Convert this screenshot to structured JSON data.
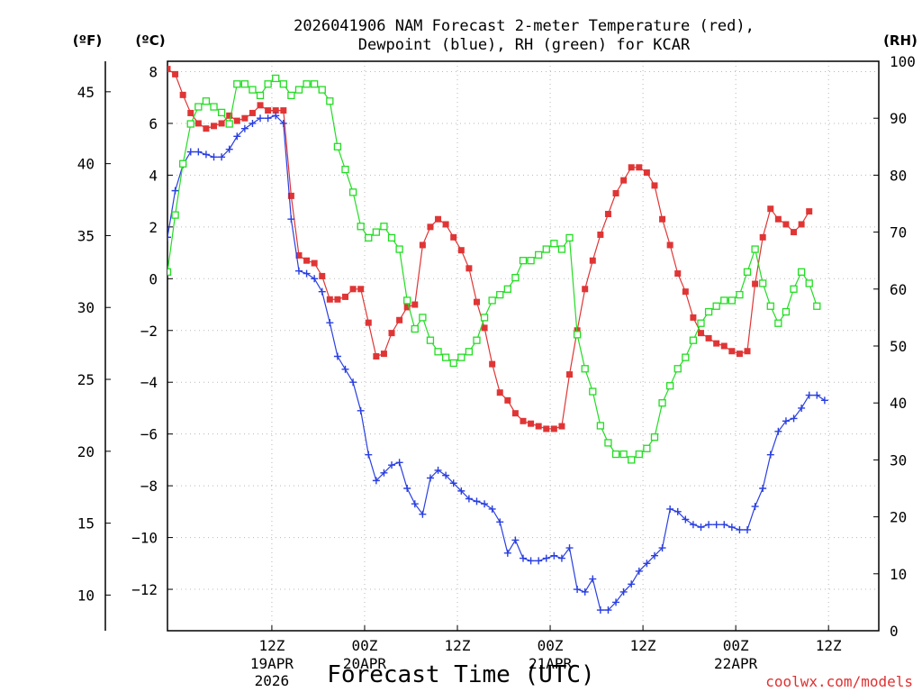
{
  "chart_data": {
    "type": "line",
    "title_line1": "2026041906 NAM Forecast 2-meter Temperature (red),",
    "title_line2": "Dewpoint (blue), RH (green) for KCAR",
    "xlabel": "Forecast Time (UTC)",
    "credit": "coolwx.com/models",
    "units": {
      "fahrenheit": "(ºF)",
      "celsius": "(ºC)",
      "rh": "(RH)"
    },
    "x_range_hours": [
      -7.5,
      84.5
    ],
    "celsius_range": [
      -13.6,
      8.4
    ],
    "rh_range": [
      0,
      100
    ],
    "celsius_ticks": [
      8,
      6,
      4,
      2,
      0,
      -2,
      -4,
      -6,
      -8,
      -10,
      -12
    ],
    "fahrenheit_ticks": [
      45,
      40,
      35,
      30,
      25,
      20,
      15,
      10
    ],
    "rh_ticks": [
      100,
      90,
      80,
      70,
      60,
      50,
      40,
      30,
      20,
      10,
      0
    ],
    "x_ticks": [
      {
        "hour": 6,
        "label": "12Z",
        "date": "19APR",
        "year": "2026"
      },
      {
        "hour": 18,
        "label": "00Z",
        "date": "20APR",
        "year": ""
      },
      {
        "hour": 30,
        "label": "12Z",
        "date": "",
        "year": ""
      },
      {
        "hour": 42,
        "label": "00Z",
        "date": "21APR",
        "year": ""
      },
      {
        "hour": 54,
        "label": "12Z",
        "date": "",
        "year": ""
      },
      {
        "hour": 66,
        "label": "00Z",
        "date": "22APR",
        "year": ""
      },
      {
        "hour": 78,
        "label": "12Z",
        "date": "",
        "year": ""
      }
    ],
    "series": [
      {
        "name": "Temperature",
        "unit": "C",
        "color": "#e03535",
        "marker": "filled-square",
        "points": [
          [
            -7.5,
            8.1
          ],
          [
            -6.5,
            7.9
          ],
          [
            -5.5,
            7.1
          ],
          [
            -4.5,
            6.4
          ],
          [
            -3.5,
            6.0
          ],
          [
            -2.5,
            5.8
          ],
          [
            -1.5,
            5.9
          ],
          [
            -0.5,
            6.0
          ],
          [
            0.5,
            6.3
          ],
          [
            1.5,
            6.1
          ],
          [
            2.5,
            6.2
          ],
          [
            3.5,
            6.4
          ],
          [
            4.5,
            6.7
          ],
          [
            5.5,
            6.5
          ],
          [
            6.5,
            6.5
          ],
          [
            7.5,
            6.5
          ],
          [
            8.5,
            3.2
          ],
          [
            9.5,
            0.9
          ],
          [
            10.5,
            0.7
          ],
          [
            11.5,
            0.6
          ],
          [
            12.5,
            0.1
          ],
          [
            13.5,
            -0.8
          ],
          [
            14.5,
            -0.8
          ],
          [
            15.5,
            -0.7
          ],
          [
            16.5,
            -0.4
          ],
          [
            17.5,
            -0.4
          ],
          [
            18.5,
            -1.7
          ],
          [
            19.5,
            -3.0
          ],
          [
            20.5,
            -2.9
          ],
          [
            21.5,
            -2.1
          ],
          [
            22.5,
            -1.6
          ],
          [
            23.5,
            -1.1
          ],
          [
            24.5,
            -1.0
          ],
          [
            25.5,
            1.3
          ],
          [
            26.5,
            2.0
          ],
          [
            27.5,
            2.3
          ],
          [
            28.5,
            2.1
          ],
          [
            29.5,
            1.6
          ],
          [
            30.5,
            1.1
          ],
          [
            31.5,
            0.4
          ],
          [
            32.5,
            -0.9
          ],
          [
            33.5,
            -1.9
          ],
          [
            34.5,
            -3.3
          ],
          [
            35.5,
            -4.4
          ],
          [
            36.5,
            -4.7
          ],
          [
            37.5,
            -5.2
          ],
          [
            38.5,
            -5.5
          ],
          [
            39.5,
            -5.6
          ],
          [
            40.5,
            -5.7
          ],
          [
            41.5,
            -5.8
          ],
          [
            42.5,
            -5.8
          ],
          [
            43.5,
            -5.7
          ],
          [
            44.5,
            -3.7
          ],
          [
            45.5,
            -2.0
          ],
          [
            46.5,
            -0.4
          ],
          [
            47.5,
            0.7
          ],
          [
            48.5,
            1.7
          ],
          [
            49.5,
            2.5
          ],
          [
            50.5,
            3.3
          ],
          [
            51.5,
            3.8
          ],
          [
            52.5,
            4.3
          ],
          [
            53.5,
            4.3
          ],
          [
            54.5,
            4.1
          ],
          [
            55.5,
            3.6
          ],
          [
            56.5,
            2.3
          ],
          [
            57.5,
            1.3
          ],
          [
            58.5,
            0.2
          ],
          [
            59.5,
            -0.5
          ],
          [
            60.5,
            -1.5
          ],
          [
            61.5,
            -2.1
          ],
          [
            62.5,
            -2.3
          ],
          [
            63.5,
            -2.5
          ],
          [
            64.5,
            -2.6
          ],
          [
            65.5,
            -2.8
          ],
          [
            66.5,
            -2.9
          ],
          [
            67.5,
            -2.8
          ],
          [
            68.5,
            -0.2
          ],
          [
            69.5,
            1.6
          ],
          [
            70.5,
            2.7
          ],
          [
            71.5,
            2.3
          ],
          [
            72.5,
            2.1
          ],
          [
            73.5,
            1.8
          ],
          [
            74.5,
            2.1
          ],
          [
            75.5,
            2.6
          ]
        ]
      },
      {
        "name": "Dewpoint",
        "unit": "C",
        "color": "#2a3fe0",
        "marker": "plus",
        "points": [
          [
            -7.5,
            1.6
          ],
          [
            -6.5,
            3.4
          ],
          [
            -5.5,
            4.4
          ],
          [
            -4.5,
            4.9
          ],
          [
            -3.5,
            4.9
          ],
          [
            -2.5,
            4.8
          ],
          [
            -1.5,
            4.7
          ],
          [
            -0.5,
            4.7
          ],
          [
            0.5,
            5.0
          ],
          [
            1.5,
            5.5
          ],
          [
            2.5,
            5.8
          ],
          [
            3.5,
            6.0
          ],
          [
            4.5,
            6.2
          ],
          [
            5.5,
            6.2
          ],
          [
            6.5,
            6.3
          ],
          [
            7.5,
            6.0
          ],
          [
            8.5,
            2.3
          ],
          [
            9.5,
            0.3
          ],
          [
            10.5,
            0.2
          ],
          [
            11.5,
            0.0
          ],
          [
            12.5,
            -0.5
          ],
          [
            13.5,
            -1.7
          ],
          [
            14.5,
            -3.0
          ],
          [
            15.5,
            -3.5
          ],
          [
            16.5,
            -4.0
          ],
          [
            17.5,
            -5.1
          ],
          [
            18.5,
            -6.8
          ],
          [
            19.5,
            -7.8
          ],
          [
            20.5,
            -7.5
          ],
          [
            21.5,
            -7.2
          ],
          [
            22.5,
            -7.1
          ],
          [
            23.5,
            -8.1
          ],
          [
            24.5,
            -8.7
          ],
          [
            25.5,
            -9.1
          ],
          [
            26.5,
            -7.7
          ],
          [
            27.5,
            -7.4
          ],
          [
            28.5,
            -7.6
          ],
          [
            29.5,
            -7.9
          ],
          [
            30.5,
            -8.2
          ],
          [
            31.5,
            -8.5
          ],
          [
            32.5,
            -8.6
          ],
          [
            33.5,
            -8.7
          ],
          [
            34.5,
            -8.9
          ],
          [
            35.5,
            -9.4
          ],
          [
            36.5,
            -10.6
          ],
          [
            37.5,
            -10.1
          ],
          [
            38.5,
            -10.8
          ],
          [
            39.5,
            -10.9
          ],
          [
            40.5,
            -10.9
          ],
          [
            41.5,
            -10.8
          ],
          [
            42.5,
            -10.7
          ],
          [
            43.5,
            -10.8
          ],
          [
            44.5,
            -10.4
          ],
          [
            45.5,
            -12.0
          ],
          [
            46.5,
            -12.1
          ],
          [
            47.5,
            -11.6
          ],
          [
            48.5,
            -12.8
          ],
          [
            49.5,
            -12.8
          ],
          [
            50.5,
            -12.5
          ],
          [
            51.5,
            -12.1
          ],
          [
            52.5,
            -11.8
          ],
          [
            53.5,
            -11.3
          ],
          [
            54.5,
            -11.0
          ],
          [
            55.5,
            -10.7
          ],
          [
            56.5,
            -10.4
          ],
          [
            57.5,
            -8.9
          ],
          [
            58.5,
            -9.0
          ],
          [
            59.5,
            -9.3
          ],
          [
            60.5,
            -9.5
          ],
          [
            61.5,
            -9.6
          ],
          [
            62.5,
            -9.5
          ],
          [
            63.5,
            -9.5
          ],
          [
            64.5,
            -9.5
          ],
          [
            65.5,
            -9.6
          ],
          [
            66.5,
            -9.7
          ],
          [
            67.5,
            -9.7
          ],
          [
            68.5,
            -8.8
          ],
          [
            69.5,
            -8.1
          ],
          [
            70.5,
            -6.8
          ],
          [
            71.5,
            -5.9
          ],
          [
            72.5,
            -5.5
          ],
          [
            73.5,
            -5.4
          ],
          [
            74.5,
            -5.0
          ],
          [
            75.5,
            -4.5
          ],
          [
            76.5,
            -4.5
          ],
          [
            77.5,
            -4.7
          ]
        ]
      },
      {
        "name": "RH",
        "unit": "%",
        "color": "#22dd22",
        "marker": "open-square",
        "points": [
          [
            -7.5,
            63
          ],
          [
            -6.5,
            73
          ],
          [
            -5.5,
            82
          ],
          [
            -4.5,
            89
          ],
          [
            -3.5,
            92
          ],
          [
            -2.5,
            93
          ],
          [
            -1.5,
            92
          ],
          [
            -0.5,
            91
          ],
          [
            0.5,
            89
          ],
          [
            1.5,
            96
          ],
          [
            2.5,
            96
          ],
          [
            3.5,
            95
          ],
          [
            4.5,
            94
          ],
          [
            5.5,
            96
          ],
          [
            6.5,
            97
          ],
          [
            7.5,
            96
          ],
          [
            8.5,
            94
          ],
          [
            9.5,
            95
          ],
          [
            10.5,
            96
          ],
          [
            11.5,
            96
          ],
          [
            12.5,
            95
          ],
          [
            13.5,
            93
          ],
          [
            14.5,
            85
          ],
          [
            15.5,
            81
          ],
          [
            16.5,
            77
          ],
          [
            17.5,
            71
          ],
          [
            18.5,
            69
          ],
          [
            19.5,
            70
          ],
          [
            20.5,
            71
          ],
          [
            21.5,
            69
          ],
          [
            22.5,
            67
          ],
          [
            23.5,
            58
          ],
          [
            24.5,
            53
          ],
          [
            25.5,
            55
          ],
          [
            26.5,
            51
          ],
          [
            27.5,
            49
          ],
          [
            28.5,
            48
          ],
          [
            29.5,
            47
          ],
          [
            30.5,
            48
          ],
          [
            31.5,
            49
          ],
          [
            32.5,
            51
          ],
          [
            33.5,
            55
          ],
          [
            34.5,
            58
          ],
          [
            35.5,
            59
          ],
          [
            36.5,
            60
          ],
          [
            37.5,
            62
          ],
          [
            38.5,
            65
          ],
          [
            39.5,
            65
          ],
          [
            40.5,
            66
          ],
          [
            41.5,
            67
          ],
          [
            42.5,
            68
          ],
          [
            43.5,
            67
          ],
          [
            44.5,
            69
          ],
          [
            45.5,
            52
          ],
          [
            46.5,
            46
          ],
          [
            47.5,
            42
          ],
          [
            48.5,
            36
          ],
          [
            49.5,
            33
          ],
          [
            50.5,
            31
          ],
          [
            51.5,
            31
          ],
          [
            52.5,
            30
          ],
          [
            53.5,
            31
          ],
          [
            54.5,
            32
          ],
          [
            55.5,
            34
          ],
          [
            56.5,
            40
          ],
          [
            57.5,
            43
          ],
          [
            58.5,
            46
          ],
          [
            59.5,
            48
          ],
          [
            60.5,
            51
          ],
          [
            61.5,
            54
          ],
          [
            62.5,
            56
          ],
          [
            63.5,
            57
          ],
          [
            64.5,
            58
          ],
          [
            65.5,
            58
          ],
          [
            66.5,
            59
          ],
          [
            67.5,
            63
          ],
          [
            68.5,
            67
          ],
          [
            69.5,
            61
          ],
          [
            70.5,
            57
          ],
          [
            71.5,
            54
          ],
          [
            72.5,
            56
          ],
          [
            73.5,
            60
          ],
          [
            74.5,
            63
          ],
          [
            75.5,
            61
          ],
          [
            76.5,
            57
          ]
        ]
      }
    ]
  }
}
